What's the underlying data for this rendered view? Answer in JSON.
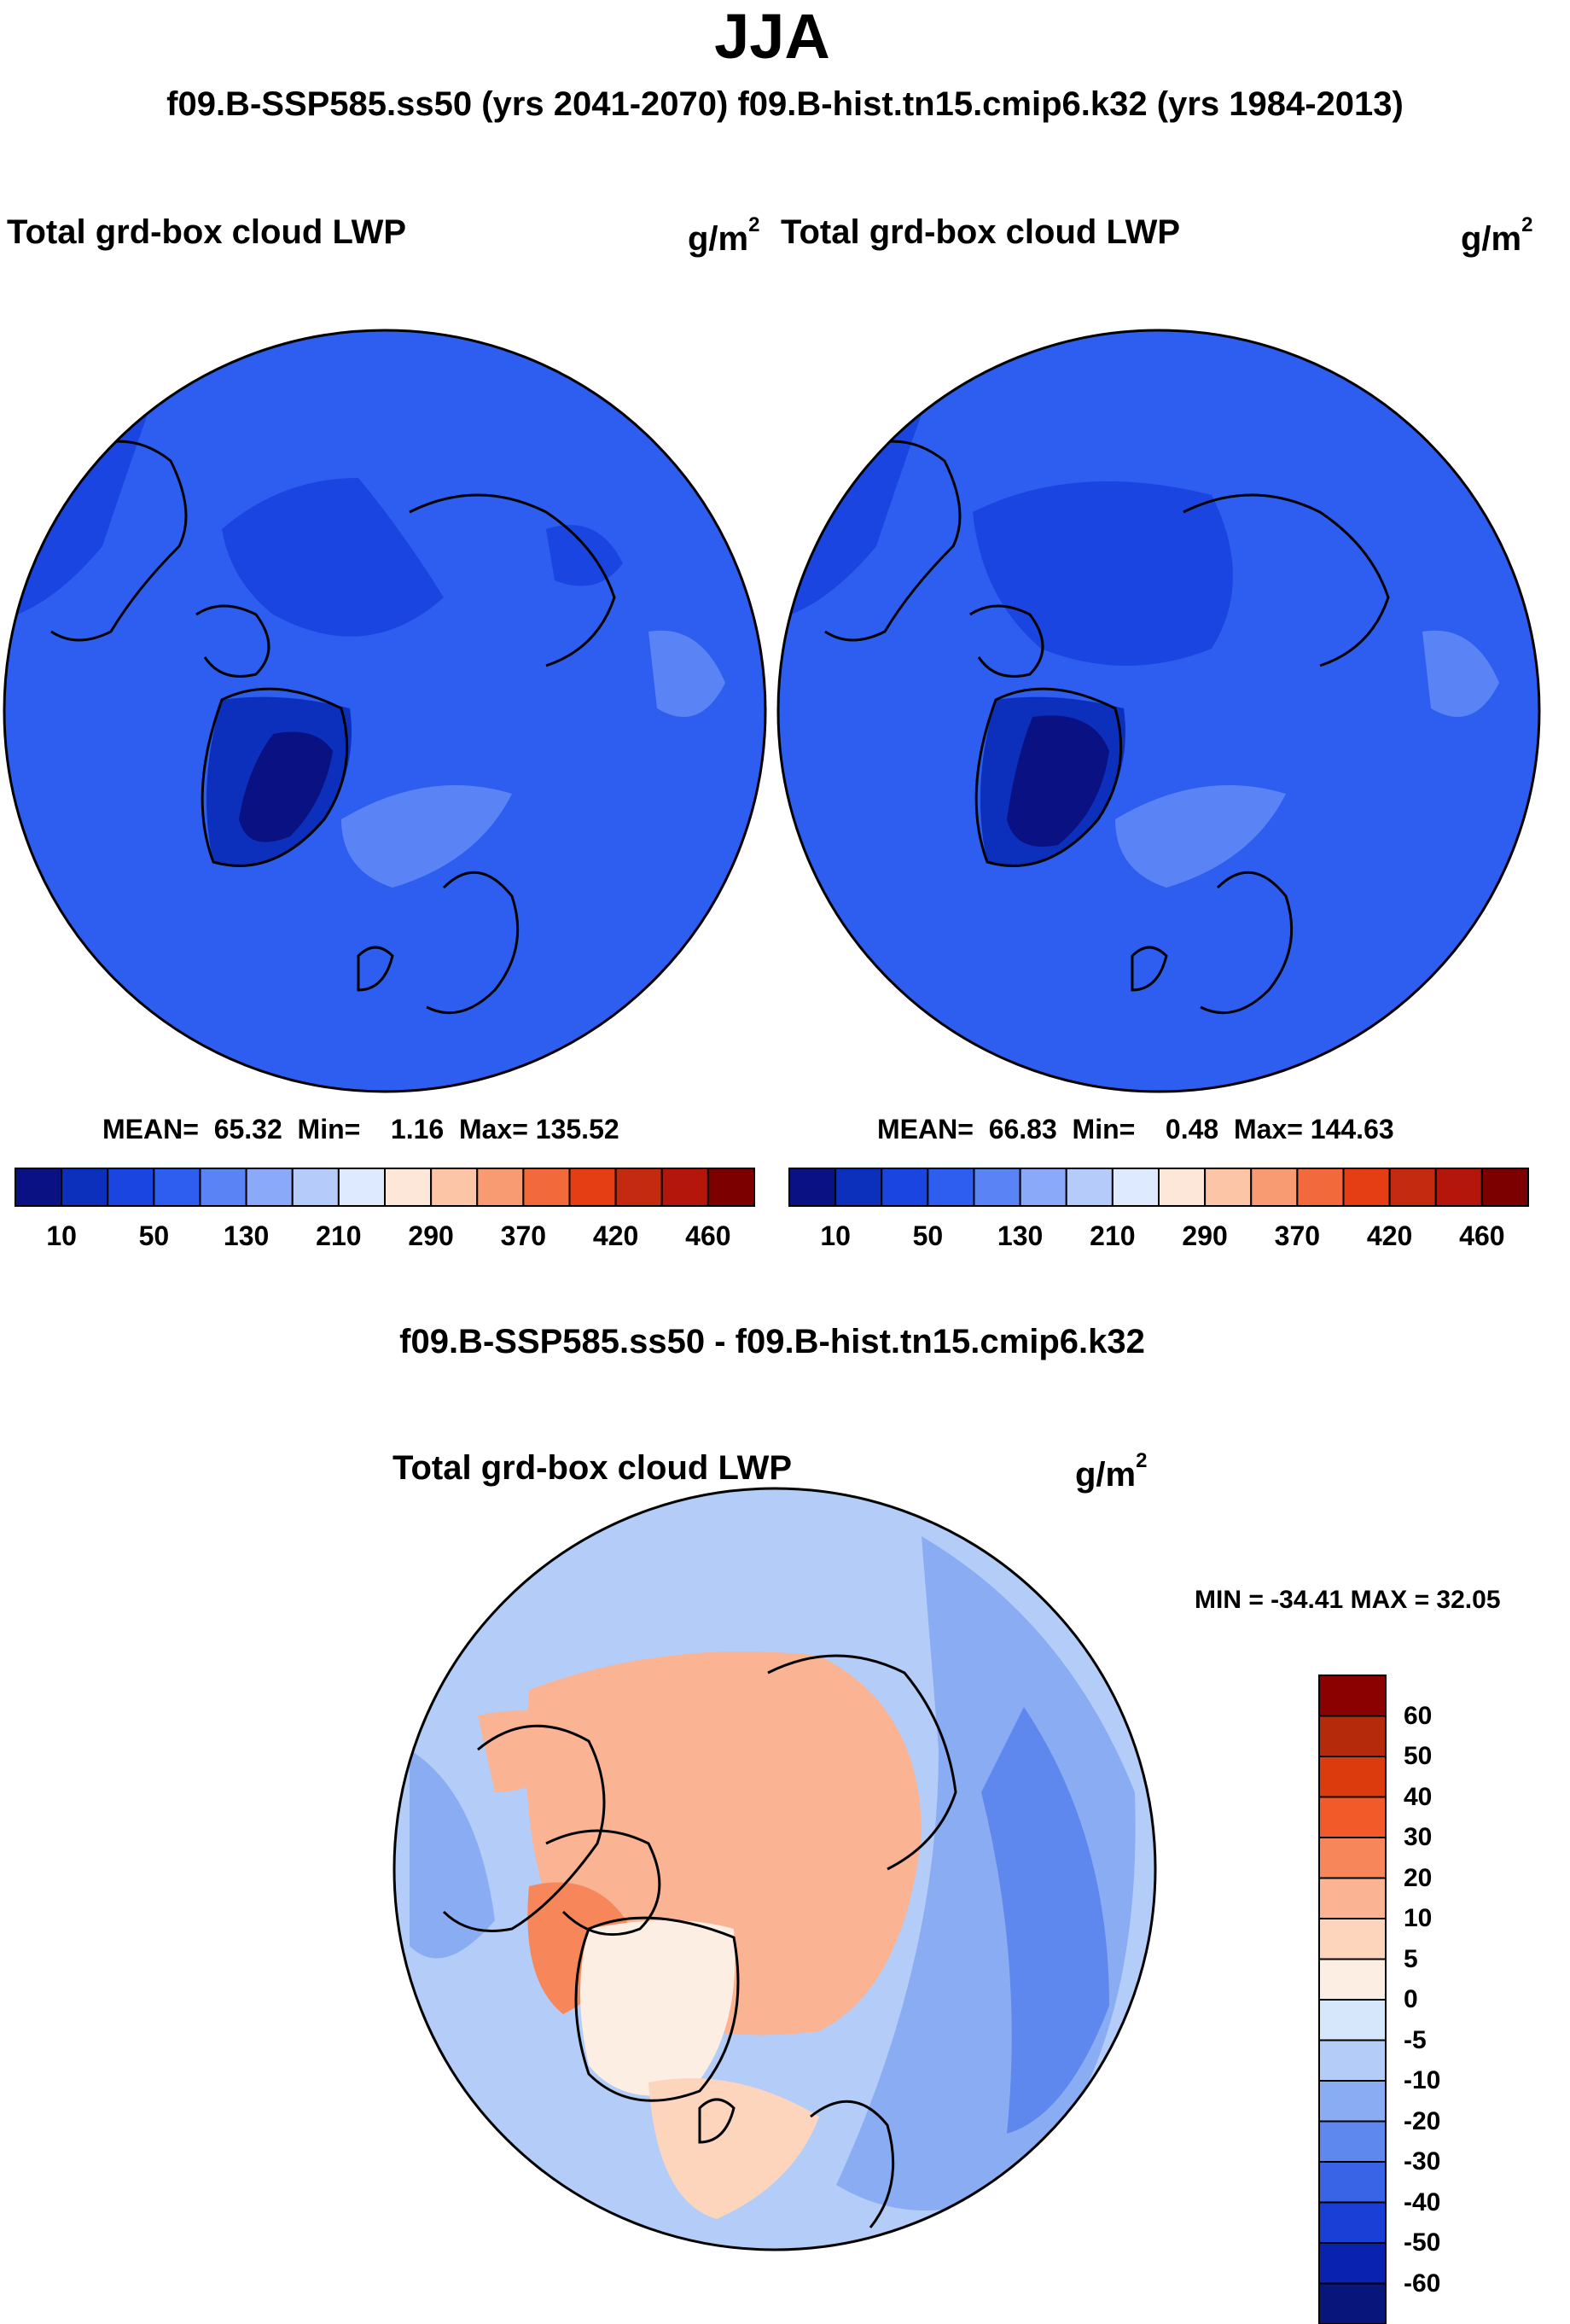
{
  "header": {
    "title": "JJA",
    "subtitle": "f09.B-SSP585.ss50 (yrs 2041-2070)  f09.B-hist.tn15.cmip6.k32 (yrs 1984-2013)"
  },
  "panels": [
    {
      "label": "Total grd-box cloud LWP",
      "unit_base": "g/m",
      "unit_exp": "2",
      "mean_label": "MEAN=",
      "mean": "65.32",
      "min_label": "Min=",
      "min": "1.16",
      "max_label": "Max=",
      "max": "135.52"
    },
    {
      "label": "Total grd-box cloud LWP",
      "unit_base": "g/m",
      "unit_exp": "2",
      "mean_label": "MEAN=",
      "mean": "66.83",
      "min_label": "Min=",
      "min": "0.48",
      "max_label": "Max=",
      "max": "144.63"
    }
  ],
  "difference": {
    "title": "f09.B-SSP585.ss50 - f09.B-hist.tn15.cmip6.k32",
    "label": "Total grd-box cloud LWP",
    "unit_base": "g/m",
    "unit_exp": "2",
    "minmax": "MIN = -34.41 MAX =  32.05"
  },
  "chart_data": [
    {
      "type": "heatmap",
      "title": "Total grd-box cloud LWP",
      "units": "g/m2",
      "period": "f09.B-SSP585.ss50 (yrs 2041-2070)",
      "projection": "polar stereographic (north)",
      "colorbar_ticks": [
        "10",
        "50",
        "130",
        "210",
        "290",
        "370",
        "420",
        "460"
      ],
      "colorbar_colors": [
        "#0a1183",
        "#0c2fbc",
        "#1a45e0",
        "#2d5ef0",
        "#5a84f5",
        "#8aa9f8",
        "#b5cbfa",
        "#ddeaff",
        "#fde7d8",
        "#fbc5a6",
        "#f89a72",
        "#f26a3c",
        "#e63e14",
        "#c42a0f",
        "#b4160c",
        "#7d0000"
      ],
      "stats": {
        "mean": 65.32,
        "min": 1.16,
        "max": 135.52
      }
    },
    {
      "type": "heatmap",
      "title": "Total grd-box cloud LWP",
      "units": "g/m2",
      "period": "f09.B-hist.tn15.cmip6.k32 (yrs 1984-2013)",
      "projection": "polar stereographic (north)",
      "colorbar_ticks": [
        "10",
        "50",
        "130",
        "210",
        "290",
        "370",
        "420",
        "460"
      ],
      "colorbar_colors": [
        "#0a1183",
        "#0c2fbc",
        "#1a45e0",
        "#2d5ef0",
        "#5a84f5",
        "#8aa9f8",
        "#b5cbfa",
        "#ddeaff",
        "#fde7d8",
        "#fbc5a6",
        "#f89a72",
        "#f26a3c",
        "#e63e14",
        "#c42a0f",
        "#b4160c",
        "#7d0000"
      ],
      "stats": {
        "mean": 66.83,
        "min": 0.48,
        "max": 144.63
      }
    },
    {
      "type": "heatmap",
      "title": "f09.B-SSP585.ss50 - f09.B-hist.tn15.cmip6.k32",
      "subtitle": "Total grd-box cloud LWP",
      "units": "g/m2",
      "projection": "polar stereographic (north)",
      "colorbar_ticks": [
        "60",
        "50",
        "40",
        "30",
        "20",
        "10",
        "5",
        "0",
        "-5",
        "-10",
        "-20",
        "-30",
        "-40",
        "-50",
        "-60"
      ],
      "colorbar_colors": [
        "#8b0000",
        "#b52a0b",
        "#dc3b0e",
        "#f25a2a",
        "#f7865a",
        "#fab393",
        "#fdd5bd",
        "#fdeee3",
        "#d6e6fb",
        "#b3cdf8",
        "#8aacf3",
        "#5f88ee",
        "#3a64e6",
        "#1a3fd6",
        "#0a22b0",
        "#08157a"
      ],
      "stats": {
        "min": -34.41,
        "max": 32.05
      }
    }
  ]
}
